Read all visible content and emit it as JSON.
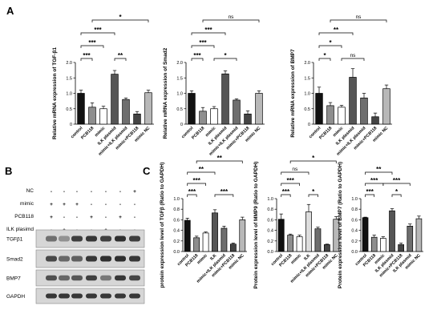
{
  "panels": {
    "a": "A",
    "b": "B",
    "c": "C"
  },
  "chart_data": [
    {
      "type": "bar",
      "ylabel": "Relative mRNA expression of TGF-β1",
      "categories": [
        "control",
        "PCB118",
        "mimic",
        "ILK plasmid",
        "mimic+ILK plasmid",
        "mimic+PCB118",
        "mimic NC"
      ],
      "values": [
        1.0,
        0.55,
        0.5,
        1.62,
        0.8,
        0.33,
        1.02
      ],
      "errors": [
        0.1,
        0.14,
        0.08,
        0.12,
        0.05,
        0.08,
        0.08
      ],
      "colors": [
        "#111111",
        "#8e8e8e",
        "#ffffff",
        "#555555",
        "#6e6e6e",
        "#444444",
        "#b8b8b8"
      ],
      "ylim": [
        0,
        2.0
      ],
      "yticks": [
        0,
        0.5,
        1.0,
        1.5,
        2.0
      ],
      "brackets": [
        {
          "from": 0,
          "to": 1,
          "label": "***",
          "level": 0
        },
        {
          "from": 3,
          "to": 4,
          "label": "**",
          "level": 0
        },
        {
          "from": 0,
          "to": 2,
          "label": "***",
          "level": 1
        },
        {
          "from": 0,
          "to": 3,
          "label": "***",
          "level": 2
        },
        {
          "from": 1,
          "to": 6,
          "label": "*",
          "level": 3
        }
      ]
    },
    {
      "type": "bar",
      "ylabel": "Relative mRNA expression of Smad2",
      "categories": [
        "control",
        "PCB118",
        "mimic",
        "ILK plasmid",
        "mimic+ILK plasmid",
        "mimic+PCB118",
        "mimic NC"
      ],
      "values": [
        1.0,
        0.42,
        0.5,
        1.63,
        0.78,
        0.33,
        1.0
      ],
      "errors": [
        0.08,
        0.12,
        0.07,
        0.1,
        0.04,
        0.1,
        0.08
      ],
      "colors": [
        "#111111",
        "#8e8e8e",
        "#ffffff",
        "#555555",
        "#6e6e6e",
        "#444444",
        "#b8b8b8"
      ],
      "ylim": [
        0,
        2.0
      ],
      "yticks": [
        0,
        0.5,
        1.0,
        1.5,
        2.0
      ],
      "brackets": [
        {
          "from": 0,
          "to": 1,
          "label": "***",
          "level": 0
        },
        {
          "from": 2,
          "to": 4,
          "label": "*",
          "level": 0
        },
        {
          "from": 0,
          "to": 2,
          "label": "***",
          "level": 1
        },
        {
          "from": 0,
          "to": 3,
          "label": "***",
          "level": 2
        },
        {
          "from": 1,
          "to": 6,
          "label": "ns",
          "level": 3
        }
      ]
    },
    {
      "type": "bar",
      "ylabel": "Relative mRNA expression of BMP7",
      "categories": [
        "control",
        "PCB118",
        "mimic",
        "ILK plasmid",
        "mimic+ILK plasmid",
        "mimic+PCB118",
        "mimic NC"
      ],
      "values": [
        1.0,
        0.6,
        0.55,
        1.52,
        0.85,
        0.24,
        1.15
      ],
      "errors": [
        0.2,
        0.1,
        0.06,
        0.28,
        0.15,
        0.12,
        0.12
      ],
      "colors": [
        "#111111",
        "#8e8e8e",
        "#ffffff",
        "#555555",
        "#6e6e6e",
        "#444444",
        "#b8b8b8"
      ],
      "ylim": [
        0,
        2.0
      ],
      "yticks": [
        0,
        0.5,
        1.0,
        1.5,
        2.0
      ],
      "brackets": [
        {
          "from": 0,
          "to": 1,
          "label": "*",
          "level": 0
        },
        {
          "from": 2,
          "to": 4,
          "label": "ns",
          "level": 0
        },
        {
          "from": 0,
          "to": 2,
          "label": "*",
          "level": 1
        },
        {
          "from": 0,
          "to": 3,
          "label": "**",
          "level": 2
        },
        {
          "from": 1,
          "to": 6,
          "label": "ns",
          "level": 3
        }
      ]
    },
    {
      "type": "bar",
      "ylabel": "protein expression level of TGFβ (Ratio to GAPDH)",
      "categories": [
        "control",
        "PCB118",
        "mimic",
        "ILK",
        "mimic+ILK plasmid",
        "mimic+PCB118",
        "mimic NC"
      ],
      "values": [
        0.59,
        0.26,
        0.35,
        0.73,
        0.44,
        0.14,
        0.6
      ],
      "errors": [
        0.04,
        0.03,
        0.02,
        0.06,
        0.04,
        0.02,
        0.05
      ],
      "colors": [
        "#111111",
        "#8e8e8e",
        "#ffffff",
        "#555555",
        "#6e6e6e",
        "#444444",
        "#b8b8b8"
      ],
      "ylim": [
        0,
        1.0
      ],
      "yticks": [
        0.0,
        0.2,
        0.4,
        0.6,
        0.8,
        1.0
      ],
      "brackets": [
        {
          "from": 0,
          "to": 1,
          "label": "***",
          "level": 0
        },
        {
          "from": 3,
          "to": 5,
          "label": "***",
          "level": 0
        },
        {
          "from": 0,
          "to": 2,
          "label": "***",
          "level": 1
        },
        {
          "from": 0,
          "to": 3,
          "label": "**",
          "level": 2
        },
        {
          "from": 1,
          "to": 6,
          "label": "**",
          "level": 3
        }
      ]
    },
    {
      "type": "bar",
      "ylabel": "Protein expression level of MMP9 (Ratio to GAPDH)",
      "categories": [
        "control",
        "PCB118",
        "mimic",
        "ILK",
        "mimic+ILK plasmid",
        "mimic+PCB118",
        "mimic NC"
      ],
      "values": [
        0.61,
        0.31,
        0.28,
        0.75,
        0.43,
        0.13,
        0.61
      ],
      "errors": [
        0.1,
        0.02,
        0.03,
        0.14,
        0.03,
        0.01,
        0.05
      ],
      "colors": [
        "#111111",
        "#8e8e8e",
        "#ffffff",
        "#dddddd",
        "#6e6e6e",
        "#444444",
        "#b8b8b8"
      ],
      "ylim": [
        0,
        1.0
      ],
      "yticks": [
        0.0,
        0.2,
        0.4,
        0.6,
        0.8,
        1.0
      ],
      "brackets": [
        {
          "from": 0,
          "to": 1,
          "label": "***",
          "level": 0
        },
        {
          "from": 3,
          "to": 4,
          "label": "*",
          "level": 0
        },
        {
          "from": 0,
          "to": 2,
          "label": "***",
          "level": 1
        },
        {
          "from": 0,
          "to": 3,
          "label": "ns",
          "level": 2
        },
        {
          "from": 1,
          "to": 6,
          "label": "*",
          "level": 3
        }
      ]
    },
    {
      "type": "bar",
      "ylabel": "Protein expression level of BMP7 (Ratio to GAPDH)",
      "categories": [
        "control",
        "PCB118",
        "mimic",
        "ILK plasmid",
        "mimic+PCB118",
        "ILK plasmid",
        "mimic NC"
      ],
      "values": [
        0.64,
        0.27,
        0.25,
        0.77,
        0.13,
        0.48,
        0.62
      ],
      "errors": [
        0.01,
        0.04,
        0.03,
        0.04,
        0.03,
        0.04,
        0.05
      ],
      "colors": [
        "#111111",
        "#8e8e8e",
        "#ffffff",
        "#555555",
        "#444444",
        "#6e6e6e",
        "#b8b8b8"
      ],
      "ylim": [
        0,
        1.0
      ],
      "yticks": [
        0.0,
        0.2,
        0.4,
        0.6,
        0.8,
        1.0
      ],
      "brackets": [
        {
          "from": 0,
          "to": 1,
          "label": "***",
          "level": 0
        },
        {
          "from": 3,
          "to": 4,
          "label": "*",
          "level": 0
        },
        {
          "from": 0,
          "to": 2,
          "label": "***",
          "level": 1
        },
        {
          "from": 2,
          "to": 5,
          "label": "***",
          "level": 1
        },
        {
          "from": 0,
          "to": 3,
          "label": "**",
          "level": 2
        }
      ]
    }
  ],
  "blot": {
    "conditions": [
      {
        "label": "NC",
        "signs": [
          "-",
          "-",
          "-",
          "-",
          "-",
          "-",
          "+"
        ]
      },
      {
        "label": "mimic",
        "signs": [
          "+",
          "+",
          "+",
          "-",
          "-",
          "-",
          "-"
        ]
      },
      {
        "label": "PCB118",
        "signs": [
          "+",
          "-",
          "-",
          "+",
          "-",
          "+",
          "-"
        ]
      },
      {
        "label": "ILK plasimd",
        "signs": [
          "-",
          "+",
          "-",
          "-",
          "+",
          "-",
          "-"
        ]
      }
    ],
    "rows": [
      {
        "label": "TGFβ1",
        "intensities": [
          0.55,
          0.35,
          0.85,
          0.9,
          0.85,
          0.95,
          0.85
        ]
      },
      {
        "label": "Smad2",
        "intensities": [
          0.8,
          0.6,
          0.65,
          0.9,
          0.95,
          0.95,
          0.9
        ]
      },
      {
        "label": "BMP7",
        "intensities": [
          0.75,
          0.6,
          0.7,
          0.85,
          0.5,
          0.9,
          0.8
        ]
      },
      {
        "label": "GAPDH",
        "intensities": [
          0.9,
          0.9,
          0.9,
          0.9,
          0.9,
          0.9,
          0.9
        ]
      }
    ]
  }
}
